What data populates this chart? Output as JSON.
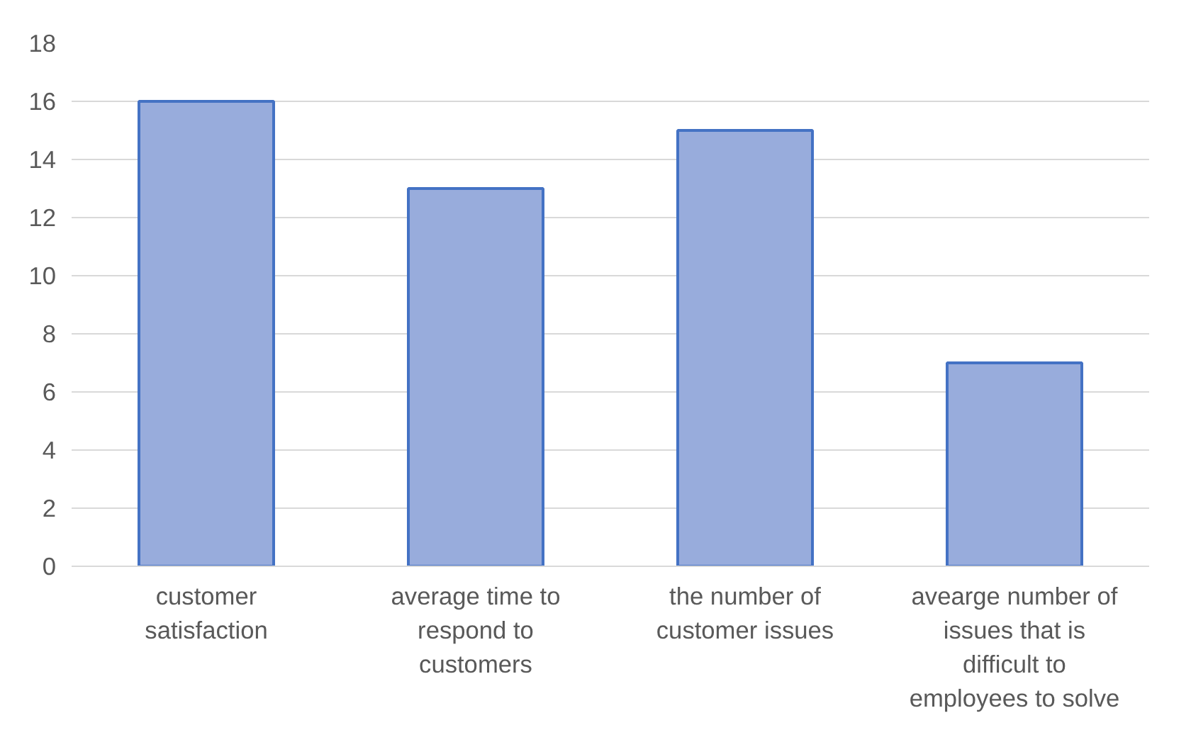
{
  "chart_data": {
    "type": "bar",
    "categories": [
      "customer satisfaction",
      "average time to respond to customers",
      "the number of customer issues",
      "avearge number of issues that is difficult to employees to solve"
    ],
    "values": [
      16,
      13,
      15,
      7
    ],
    "color": "#98acdc",
    "ylim": [
      0,
      18
    ],
    "yticks": [
      0,
      2,
      4,
      6,
      8,
      10,
      12,
      14,
      16,
      18
    ],
    "grid": "y"
  }
}
